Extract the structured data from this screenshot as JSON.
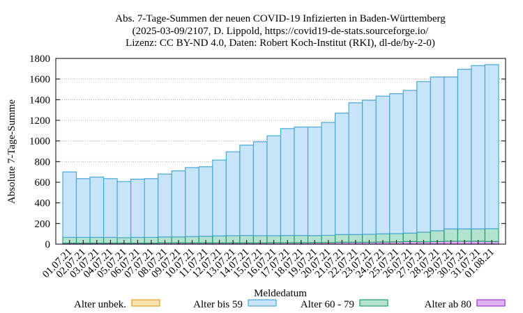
{
  "chart_data": {
    "type": "bar",
    "stacked": true,
    "title": [
      "Abs. 7-Tage-Summen der neuen COVID-19 Infizierten in Baden-Württemberg",
      "(2025-03-09/2107, D. Lippold, https://covid19-de-stats.sourceforge.io/",
      "Lizenz: CC BY-ND 4.0, Daten: Robert Koch-Institut (RKI), dl-de/by-2-0)"
    ],
    "xlabel": "Meldedatum",
    "ylabel": "Absolute 7-Tage-Summe",
    "ylim": [
      0,
      1800
    ],
    "yticks": [
      0,
      200,
      400,
      600,
      800,
      1000,
      1200,
      1400,
      1600,
      1800
    ],
    "legend_position": "bottom",
    "categories": [
      "01.07.21",
      "02.07.21",
      "03.07.21",
      "04.07.21",
      "05.07.21",
      "06.07.21",
      "07.07.21",
      "08.07.21",
      "09.07.21",
      "10.07.21",
      "11.07.21",
      "12.07.21",
      "13.07.21",
      "14.07.21",
      "15.07.21",
      "16.07.21",
      "17.07.21",
      "18.07.21",
      "19.07.21",
      "20.07.21",
      "21.07.21",
      "22.07.21",
      "23.07.21",
      "24.07.21",
      "25.07.21",
      "26.07.21",
      "27.07.21",
      "28.07.21",
      "29.07.21",
      "30.07.21",
      "31.07.21",
      "01.08.21"
    ],
    "series": [
      {
        "name": "Alter ab 80",
        "color": "#9b30d9",
        "fill": "#e0b3f0",
        "values": [
          10,
          10,
          10,
          10,
          10,
          10,
          10,
          12,
          12,
          12,
          12,
          12,
          12,
          12,
          12,
          14,
          14,
          14,
          15,
          15,
          18,
          18,
          18,
          20,
          22,
          25,
          22,
          25,
          28,
          28,
          28,
          25
        ]
      },
      {
        "name": "Alter 60 - 79",
        "color": "#1f9e6b",
        "fill": "#b3e3d0",
        "values": [
          55,
          55,
          55,
          55,
          52,
          55,
          55,
          58,
          58,
          62,
          65,
          68,
          70,
          72,
          70,
          68,
          70,
          70,
          68,
          70,
          75,
          75,
          78,
          80,
          80,
          82,
          95,
          105,
          120,
          120,
          120,
          125
        ]
      },
      {
        "name": "Alter bis 59",
        "color": "#4aa8d8",
        "fill": "#c8e4f8",
        "values": [
          635,
          570,
          585,
          570,
          545,
          565,
          570,
          610,
          640,
          668,
          673,
          735,
          813,
          876,
          910,
          968,
          1036,
          1051,
          1052,
          1095,
          1177,
          1277,
          1299,
          1335,
          1356,
          1383,
          1458,
          1490,
          1472,
          1547,
          1582,
          1590
        ]
      },
      {
        "name": "Alter unbek.",
        "color": "#e0a020",
        "fill": "#fbe3b0",
        "values": [
          0,
          0,
          0,
          0,
          0,
          0,
          0,
          0,
          0,
          0,
          0,
          0,
          0,
          0,
          0,
          0,
          0,
          0,
          0,
          0,
          0,
          0,
          0,
          0,
          0,
          0,
          0,
          0,
          0,
          0,
          0,
          0
        ]
      }
    ],
    "legend_order": [
      "Alter unbek.",
      "Alter bis 59",
      "Alter 60 - 79",
      "Alter ab 80"
    ]
  }
}
